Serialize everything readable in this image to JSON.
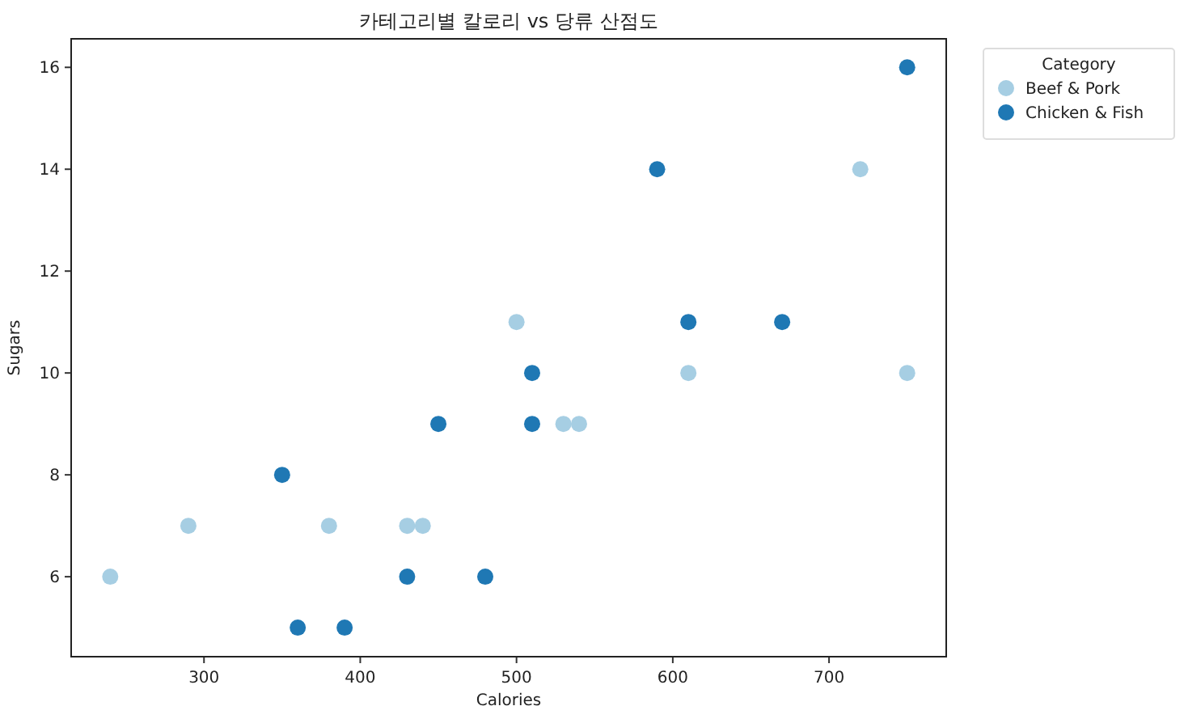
{
  "chart_data": {
    "type": "scatter",
    "title": "카테고리별 칼로리 vs 당류 산점도",
    "xlabel": "Calories",
    "ylabel": "Sugars",
    "legend_title": "Category",
    "legend": "top right",
    "marker": "circle",
    "grid": false,
    "xlim": [
      215,
      775
    ],
    "ylim": [
      4.43,
      16.56
    ],
    "xticks": [
      300,
      400,
      500,
      600,
      700
    ],
    "yticks": [
      6,
      8,
      10,
      12,
      14,
      16
    ],
    "series": [
      {
        "name": "Beef & Pork",
        "color": "#a6cee3",
        "x": [
          240,
          290,
          380,
          430,
          440,
          500,
          530,
          540,
          610,
          720,
          750
        ],
        "values": [
          6,
          7,
          7,
          7,
          7,
          11,
          9,
          9,
          10,
          14,
          10
        ]
      },
      {
        "name": "Chicken & Fish",
        "color": "#1f78b4",
        "x": [
          350,
          360,
          390,
          430,
          450,
          480,
          510,
          510,
          590,
          610,
          670,
          750
        ],
        "values": [
          8,
          5,
          5,
          6,
          9,
          6,
          10,
          9,
          14,
          11,
          11,
          16
        ]
      }
    ]
  }
}
